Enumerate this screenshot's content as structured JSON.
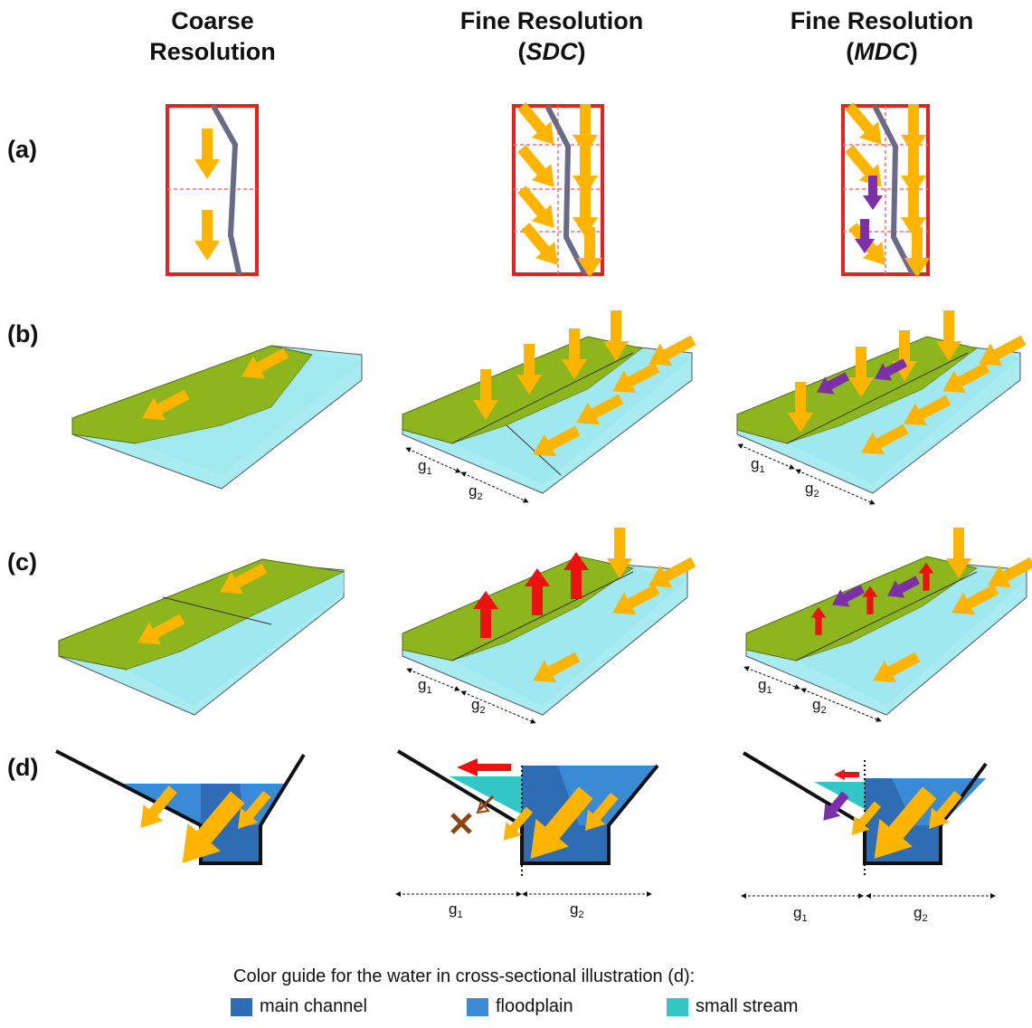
{
  "columns": [
    {
      "line1": "Coarse",
      "line2": "Resolution"
    },
    {
      "line1": "Fine Resolution",
      "line2_pre": "(",
      "line2_italic": "SDC",
      "line2_post": ")"
    },
    {
      "line1": "Fine Resolution",
      "line2_pre": "(",
      "line2_italic": "MDC",
      "line2_post": ")"
    }
  ],
  "rows": [
    "(a)",
    "(b)",
    "(c)",
    "(d)"
  ],
  "grid_labels": {
    "g1": "g",
    "g1_sub": "1",
    "g2": "g",
    "g2_sub": "2"
  },
  "legend": {
    "title": "Color guide for the water in cross-sectional illustration (d):",
    "items": [
      {
        "label": "main channel",
        "color": "#2e6db4"
      },
      {
        "label": "floodplain",
        "color": "#3a8ad6"
      },
      {
        "label": "small stream",
        "color": "#33c6c6"
      }
    ]
  },
  "colors": {
    "cell_border": "#e82020",
    "grid_dash": "#f07070",
    "river": "#6a6a88",
    "arrow_main": "#ffb400",
    "arrow_mdc": "#7b2fa8",
    "arrow_up": "#ee1111",
    "arrow_blocked": "#8b4513",
    "terrain": "#8db51e",
    "water": "#9fe8ee"
  },
  "icons": [
    "flow-arrow-icon",
    "blocked-flow-x-icon"
  ]
}
